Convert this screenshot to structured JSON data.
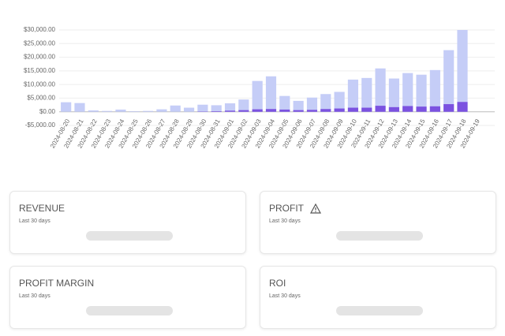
{
  "chart_data": {
    "type": "bar",
    "categories": [
      "2024-08-20",
      "2024-08-21",
      "2024-08-22",
      "2024-08-23",
      "2024-08-24",
      "2024-08-25",
      "2024-08-26",
      "2024-08-27",
      "2024-08-28",
      "2024-08-29",
      "2024-08-30",
      "2024-08-31",
      "2024-09-01",
      "2024-09-02",
      "2024-09-03",
      "2024-09-04",
      "2024-09-05",
      "2024-09-06",
      "2024-09-07",
      "2024-09-08",
      "2024-09-09",
      "2024-09-10",
      "2024-09-11",
      "2024-09-12",
      "2024-09-13",
      "2024-09-14",
      "2024-09-15",
      "2024-09-16",
      "2024-09-17",
      "2024-09-18",
      "2024-09-19"
    ],
    "series": [
      {
        "color": "#c5cdf7",
        "values": [
          3500,
          3200,
          500,
          300,
          800,
          200,
          300,
          900,
          2300,
          1500,
          2600,
          2400,
          3100,
          4500,
          11300,
          13000,
          5800,
          4000,
          5200,
          6500,
          7300,
          11800,
          12400,
          15900,
          12200,
          14200,
          13600,
          15300,
          22600,
          30000,
          0
        ]
      },
      {
        "color": "#7b52e0",
        "values": [
          0,
          0,
          0,
          0,
          0,
          0,
          0,
          0,
          0,
          0,
          100,
          200,
          400,
          600,
          900,
          1000,
          800,
          600,
          700,
          1000,
          1200,
          1500,
          1500,
          2200,
          1700,
          2100,
          1900,
          2000,
          2800,
          3600,
          0
        ]
      }
    ],
    "ylim": [
      -5000,
      30000
    ],
    "yticks": [
      {
        "value": -5000,
        "label": "-$5,000.00"
      },
      {
        "value": 0,
        "label": "$0.00"
      },
      {
        "value": 5000,
        "label": "$5,000.00"
      },
      {
        "value": 10000,
        "label": "$10,000.00"
      },
      {
        "value": 15000,
        "label": "$15,000.00"
      },
      {
        "value": 20000,
        "label": "$20,000.00"
      },
      {
        "value": 25000,
        "label": "$25,000.00"
      },
      {
        "value": 30000,
        "label": "$30,000.00"
      }
    ],
    "grid": true
  },
  "cards": [
    {
      "title": "REVENUE",
      "subtitle": "Last 30 days"
    },
    {
      "title": "PROFIT",
      "subtitle": "Last 30 days"
    },
    {
      "title": "PROFIT MARGIN",
      "subtitle": "Last 30 days"
    },
    {
      "title": "ROI",
      "subtitle": "Last 30 days"
    }
  ]
}
